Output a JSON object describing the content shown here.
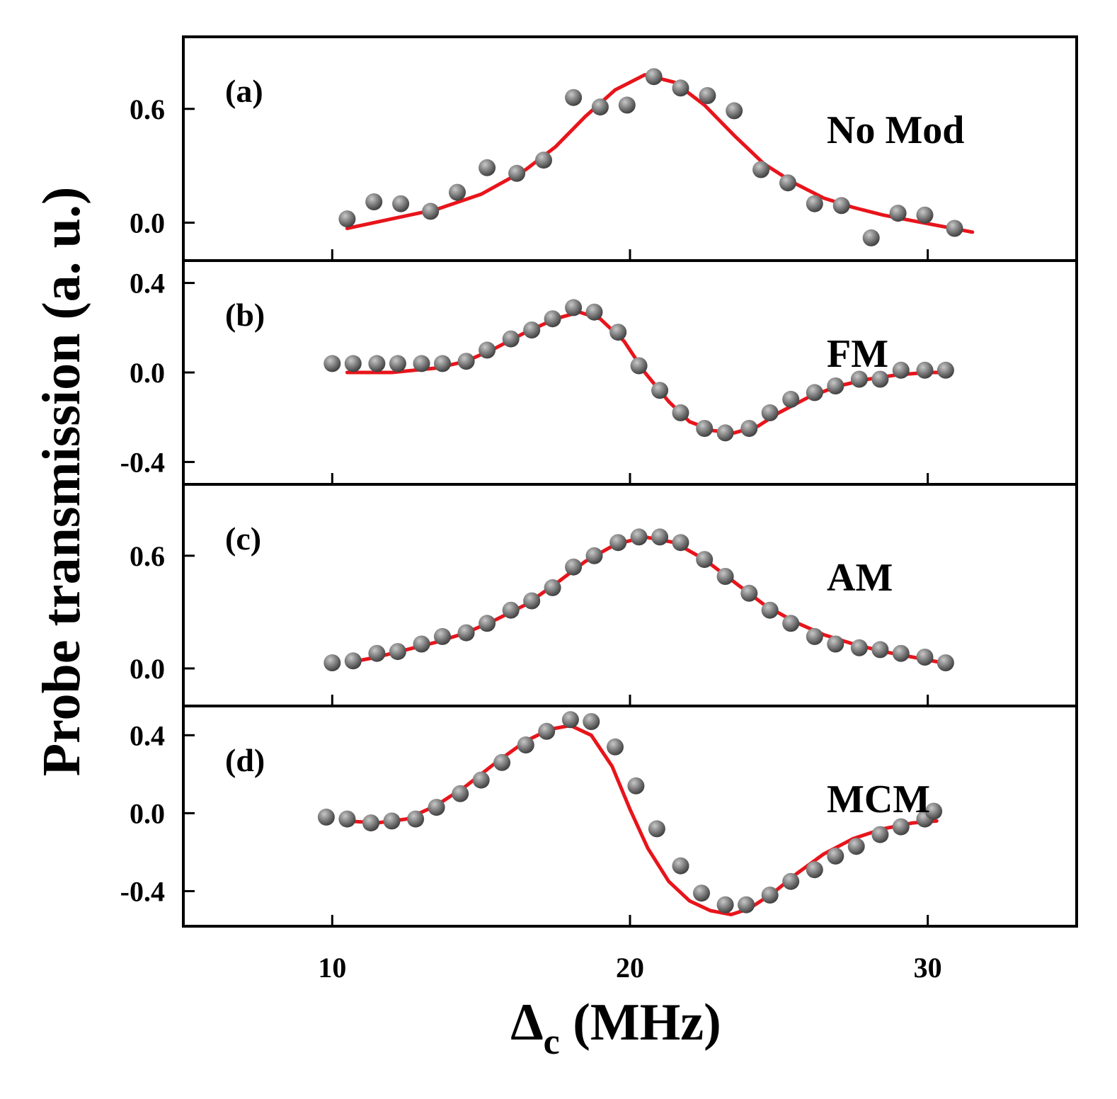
{
  "figure": {
    "ylabel": "Probe transmission (a. u.)",
    "xlabel_symbol": "Δ",
    "xlabel_sub": "c",
    "xlabel_unit": " (MHz)"
  },
  "colors": {
    "marker": "#6b6b6b",
    "fit": "#e8141b",
    "axis": "#000000"
  },
  "chart_data": [
    {
      "type": "scatter",
      "panel": "(a)",
      "label": "No Mod",
      "xlim": [
        5,
        35
      ],
      "ylim": [
        -0.2,
        0.98
      ],
      "xticks": [
        10,
        20,
        30
      ],
      "yticks": [
        0.0,
        0.6
      ],
      "x_tick_labels": false,
      "series": [
        {
          "name": "data",
          "style": "markers",
          "x": [
            10.5,
            11.4,
            12.3,
            13.3,
            14.2,
            15.2,
            16.2,
            17.1,
            18.1,
            19.0,
            19.9,
            20.8,
            21.7,
            22.6,
            23.5,
            24.4,
            25.3,
            26.2,
            27.1,
            28.1,
            29.0,
            29.9,
            30.9
          ],
          "y": [
            0.02,
            0.11,
            0.1,
            0.06,
            0.16,
            0.29,
            0.26,
            0.33,
            0.66,
            0.61,
            0.62,
            0.77,
            0.71,
            0.67,
            0.59,
            0.28,
            0.21,
            0.1,
            0.09,
            -0.08,
            0.05,
            0.04,
            -0.03
          ]
        },
        {
          "name": "fit",
          "style": "line",
          "x": [
            10.5,
            12,
            13.5,
            15,
            16.5,
            17.5,
            18.5,
            19.5,
            20.5,
            21.5,
            22.5,
            23.5,
            24.5,
            25.5,
            26.5,
            27.5,
            28.5,
            29.5,
            30.5,
            31.5
          ],
          "y": [
            -0.03,
            0.02,
            0.07,
            0.15,
            0.28,
            0.4,
            0.56,
            0.7,
            0.78,
            0.74,
            0.62,
            0.46,
            0.31,
            0.21,
            0.13,
            0.08,
            0.04,
            0.01,
            -0.02,
            -0.05
          ]
        }
      ]
    },
    {
      "type": "scatter",
      "panel": "(b)",
      "label": "FM",
      "xlim": [
        5,
        35
      ],
      "ylim": [
        -0.5,
        0.5
      ],
      "xticks": [
        10,
        20,
        30
      ],
      "yticks": [
        0.4,
        0.0,
        -0.4
      ],
      "x_tick_labels": false,
      "series": [
        {
          "name": "data",
          "style": "markers",
          "x": [
            10.0,
            10.7,
            11.5,
            12.2,
            13.0,
            13.7,
            14.5,
            15.2,
            16.0,
            16.7,
            17.4,
            18.1,
            18.8,
            19.6,
            20.3,
            21.0,
            21.7,
            22.5,
            23.2,
            24.0,
            24.7,
            25.4,
            26.2,
            26.9,
            27.7,
            28.4,
            29.1,
            29.9,
            30.6
          ],
          "y": [
            0.04,
            0.04,
            0.04,
            0.04,
            0.04,
            0.04,
            0.05,
            0.1,
            0.15,
            0.19,
            0.24,
            0.29,
            0.27,
            0.18,
            0.03,
            -0.08,
            -0.18,
            -0.25,
            -0.27,
            -0.25,
            -0.18,
            -0.12,
            -0.09,
            -0.06,
            -0.03,
            -0.03,
            0.01,
            0.01,
            0.01
          ]
        },
        {
          "name": "fit",
          "style": "line",
          "x": [
            10.5,
            12,
            13.5,
            14.5,
            15.5,
            16.5,
            17.5,
            18.3,
            19.0,
            19.8,
            20.5,
            21.3,
            22.0,
            22.8,
            23.5,
            24.3,
            25.0,
            26.0,
            27.0,
            28.0,
            29.0,
            30.0,
            30.5
          ],
          "y": [
            0.0,
            0.0,
            0.02,
            0.05,
            0.11,
            0.18,
            0.24,
            0.27,
            0.24,
            0.14,
            0.0,
            -0.13,
            -0.22,
            -0.26,
            -0.27,
            -0.24,
            -0.18,
            -0.11,
            -0.06,
            -0.03,
            -0.01,
            0.0,
            0.0
          ]
        }
      ]
    },
    {
      "type": "scatter",
      "panel": "(c)",
      "label": "AM",
      "xlim": [
        5,
        35
      ],
      "ylim": [
        -0.2,
        0.98
      ],
      "xticks": [
        10,
        20,
        30
      ],
      "yticks": [
        0.0,
        0.6
      ],
      "x_tick_labels": false,
      "series": [
        {
          "name": "data",
          "style": "markers",
          "x": [
            10.0,
            10.7,
            11.5,
            12.2,
            13.0,
            13.7,
            14.5,
            15.2,
            16.0,
            16.7,
            17.4,
            18.1,
            18.8,
            19.6,
            20.3,
            21.0,
            21.7,
            22.5,
            23.2,
            24.0,
            24.7,
            25.4,
            26.2,
            26.9,
            27.7,
            28.4,
            29.1,
            29.9,
            30.6
          ],
          "y": [
            0.03,
            0.04,
            0.08,
            0.09,
            0.13,
            0.17,
            0.19,
            0.24,
            0.31,
            0.36,
            0.43,
            0.54,
            0.6,
            0.67,
            0.7,
            0.7,
            0.67,
            0.58,
            0.49,
            0.4,
            0.31,
            0.24,
            0.17,
            0.13,
            0.11,
            0.1,
            0.08,
            0.06,
            0.03
          ]
        },
        {
          "name": "fit",
          "style": "line",
          "x": [
            10.5,
            11.5,
            12.5,
            13.5,
            14.5,
            15.5,
            16.5,
            17.5,
            18.5,
            19.5,
            20.5,
            21.5,
            22.5,
            23.5,
            24.5,
            25.5,
            26.5,
            27.5,
            28.5,
            29.5,
            30.5
          ],
          "y": [
            0.03,
            0.06,
            0.1,
            0.14,
            0.19,
            0.26,
            0.34,
            0.45,
            0.57,
            0.66,
            0.7,
            0.67,
            0.58,
            0.46,
            0.34,
            0.25,
            0.18,
            0.13,
            0.09,
            0.06,
            0.03
          ]
        }
      ]
    },
    {
      "type": "scatter",
      "panel": "(d)",
      "label": "MCM",
      "xlim": [
        5,
        35
      ],
      "ylim": [
        -0.58,
        0.55
      ],
      "xticks": [
        10,
        20,
        30
      ],
      "yticks": [
        0.4,
        0.0,
        -0.4
      ],
      "x_tick_labels": true,
      "series": [
        {
          "name": "data",
          "style": "markers",
          "x": [
            9.8,
            10.5,
            11.3,
            12.0,
            12.8,
            13.5,
            14.3,
            15.0,
            15.7,
            16.5,
            17.2,
            18.0,
            18.7,
            19.5,
            20.2,
            20.9,
            21.7,
            22.4,
            23.2,
            23.9,
            24.7,
            25.4,
            26.2,
            26.9,
            27.6,
            28.4,
            29.1,
            29.9,
            30.2
          ],
          "y": [
            -0.02,
            -0.03,
            -0.05,
            -0.04,
            -0.03,
            0.03,
            0.1,
            0.17,
            0.26,
            0.35,
            0.42,
            0.48,
            0.47,
            0.34,
            0.14,
            -0.08,
            -0.27,
            -0.41,
            -0.47,
            -0.47,
            -0.42,
            -0.35,
            -0.29,
            -0.22,
            -0.17,
            -0.11,
            -0.07,
            -0.03,
            0.01
          ]
        },
        {
          "name": "fit",
          "style": "line",
          "x": [
            10.5,
            11.5,
            12.5,
            13.5,
            14.5,
            15.5,
            16.5,
            17.3,
            18.0,
            18.7,
            19.4,
            20.0,
            20.6,
            21.3,
            22.0,
            22.7,
            23.4,
            24.0,
            24.8,
            25.6,
            26.5,
            27.5,
            28.5,
            29.5,
            30.3
          ],
          "y": [
            -0.04,
            -0.05,
            -0.03,
            0.04,
            0.14,
            0.26,
            0.37,
            0.43,
            0.45,
            0.4,
            0.24,
            0.02,
            -0.18,
            -0.35,
            -0.45,
            -0.5,
            -0.52,
            -0.49,
            -0.41,
            -0.31,
            -0.21,
            -0.13,
            -0.08,
            -0.05,
            -0.04
          ]
        }
      ]
    }
  ]
}
